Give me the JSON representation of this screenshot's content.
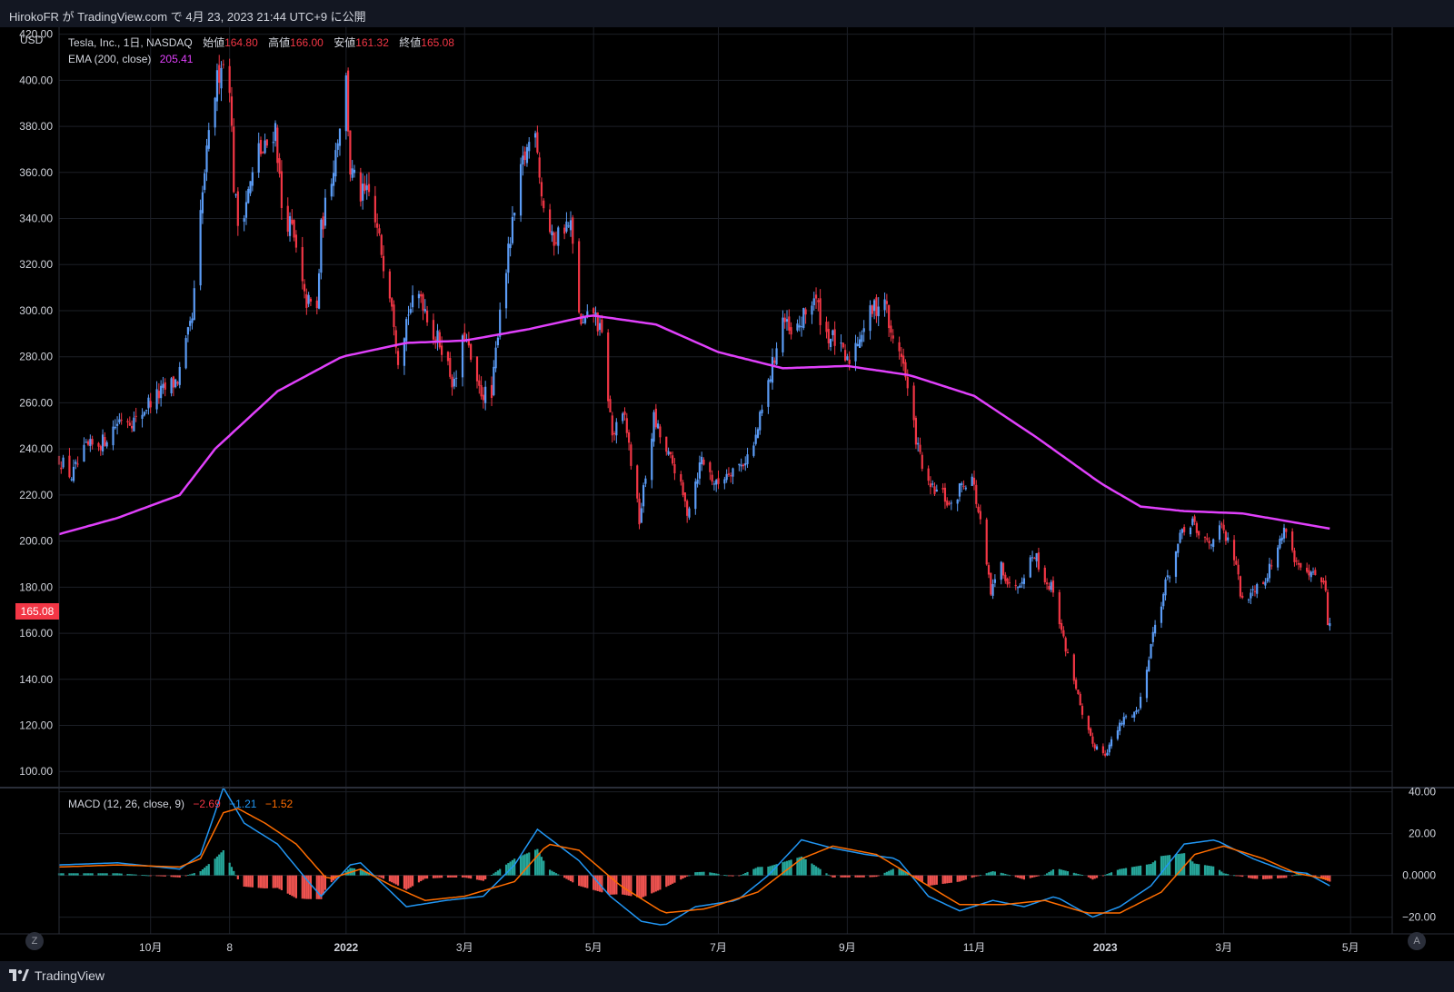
{
  "header": {
    "publish_line": "HirokoFR が TradingView.com で 4月 23, 2023 21:44 UTC+9 に公開"
  },
  "footer": {
    "brand": "TradingView"
  },
  "buttons": {
    "zoom": "Z",
    "auto": "A"
  },
  "chart_data": [
    {
      "type": "candlestick",
      "currency_label": "USD",
      "symbol_line": "Tesla, Inc., 1日, NASDAQ",
      "ohlc_labels": {
        "open": "始値",
        "high": "高値",
        "low": "安値",
        "close": "終値"
      },
      "ohlc_values": {
        "open": "164.80",
        "high": "166.00",
        "low": "161.32",
        "close": "165.08"
      },
      "last_price_tag": "165.08",
      "ema_label": "EMA (200, close)",
      "ema_value": "205.41",
      "ylim": [
        93,
        423
      ],
      "yticks": [
        "100.00",
        "120.00",
        "140.00",
        "160.00",
        "180.00",
        "200.00",
        "220.00",
        "240.00",
        "260.00",
        "280.00",
        "300.00",
        "320.00",
        "340.00",
        "360.00",
        "380.00",
        "400.00",
        "420.00"
      ],
      "x_ticks": [
        "10月",
        "8",
        "2022",
        "3月",
        "5月",
        "7月",
        "9月",
        "11月",
        "2023",
        "3月",
        "5月"
      ],
      "x_tick_dates": [
        "2021-10-01",
        "2021-11-08",
        "2022-01-03",
        "2022-03-01",
        "2022-05-02",
        "2022-07-01",
        "2022-09-01",
        "2022-11-01",
        "2023-01-03",
        "2023-03-01",
        "2023-05-01"
      ],
      "x_range": [
        "2021-08-18",
        "2023-05-21"
      ],
      "price_anchors": [
        [
          "2021-08-18",
          236
        ],
        [
          "2021-08-24",
          228
        ],
        [
          "2021-08-31",
          240
        ],
        [
          "2021-09-08",
          243
        ],
        [
          "2021-09-17",
          254
        ],
        [
          "2021-09-24",
          252
        ],
        [
          "2021-09-30",
          260
        ],
        [
          "2021-10-07",
          265
        ],
        [
          "2021-10-14",
          270
        ],
        [
          "2021-10-21",
          296
        ],
        [
          "2021-10-25",
          340
        ],
        [
          "2021-10-27",
          360
        ],
        [
          "2021-11-01",
          395
        ],
        [
          "2021-11-04",
          409
        ],
        [
          "2021-11-08",
          400
        ],
        [
          "2021-11-10",
          355
        ],
        [
          "2021-11-12",
          338
        ],
        [
          "2021-11-15",
          345
        ],
        [
          "2021-11-19",
          358
        ],
        [
          "2021-11-22",
          370
        ],
        [
          "2021-11-24",
          368
        ],
        [
          "2021-11-30",
          380
        ],
        [
          "2021-12-03",
          345
        ],
        [
          "2021-12-08",
          335
        ],
        [
          "2021-12-14",
          305
        ],
        [
          "2021-12-20",
          300
        ],
        [
          "2021-12-22",
          335
        ],
        [
          "2021-12-28",
          364
        ],
        [
          "2022-01-03",
          400
        ],
        [
          "2022-01-05",
          361
        ],
        [
          "2022-01-10",
          350
        ],
        [
          "2022-01-14",
          350
        ],
        [
          "2022-01-19",
          330
        ],
        [
          "2022-01-25",
          305
        ],
        [
          "2022-01-28",
          280
        ],
        [
          "2022-02-02",
          300
        ],
        [
          "2022-02-08",
          307
        ],
        [
          "2022-02-14",
          290
        ],
        [
          "2022-02-18",
          285
        ],
        [
          "2022-02-24",
          267
        ],
        [
          "2022-03-01",
          290
        ],
        [
          "2022-03-07",
          266
        ],
        [
          "2022-03-14",
          262
        ],
        [
          "2022-03-18",
          302
        ],
        [
          "2022-03-24",
          336
        ],
        [
          "2022-03-29",
          364
        ],
        [
          "2022-04-04",
          382
        ],
        [
          "2022-04-07",
          350
        ],
        [
          "2022-04-12",
          330
        ],
        [
          "2022-04-18",
          337
        ],
        [
          "2022-04-21",
          336
        ],
        [
          "2022-04-26",
          292
        ],
        [
          "2022-05-02",
          300
        ],
        [
          "2022-05-06",
          288
        ],
        [
          "2022-05-11",
          246
        ],
        [
          "2022-05-17",
          254
        ],
        [
          "2022-05-24",
          209
        ],
        [
          "2022-05-31",
          253
        ],
        [
          "2022-06-06",
          238
        ],
        [
          "2022-06-10",
          232
        ],
        [
          "2022-06-16",
          213
        ],
        [
          "2022-06-23",
          236
        ],
        [
          "2022-06-30",
          224
        ],
        [
          "2022-07-06",
          231
        ],
        [
          "2022-07-12",
          233
        ],
        [
          "2022-07-18",
          241
        ],
        [
          "2022-07-25",
          268
        ],
        [
          "2022-08-01",
          297
        ],
        [
          "2022-08-05",
          288
        ],
        [
          "2022-08-10",
          295
        ],
        [
          "2022-08-16",
          306
        ],
        [
          "2022-08-22",
          290
        ],
        [
          "2022-08-26",
          287
        ],
        [
          "2022-09-01",
          277
        ],
        [
          "2022-09-07",
          290
        ],
        [
          "2022-09-13",
          300
        ],
        [
          "2022-09-19",
          306
        ],
        [
          "2022-09-22",
          288
        ],
        [
          "2022-09-27",
          282
        ],
        [
          "2022-09-30",
          265
        ],
        [
          "2022-10-05",
          240
        ],
        [
          "2022-10-10",
          223
        ],
        [
          "2022-10-17",
          220
        ],
        [
          "2022-10-21",
          214
        ],
        [
          "2022-10-26",
          225
        ],
        [
          "2022-10-31",
          228
        ],
        [
          "2022-11-04",
          207
        ],
        [
          "2022-11-09",
          177
        ],
        [
          "2022-11-14",
          190
        ],
        [
          "2022-11-18",
          180
        ],
        [
          "2022-11-23",
          183
        ],
        [
          "2022-11-30",
          195
        ],
        [
          "2022-12-05",
          183
        ],
        [
          "2022-12-09",
          179
        ],
        [
          "2022-12-14",
          157
        ],
        [
          "2022-12-20",
          137
        ],
        [
          "2022-12-23",
          123
        ],
        [
          "2022-12-28",
          112
        ],
        [
          "2023-01-03",
          108
        ],
        [
          "2023-01-06",
          113
        ],
        [
          "2023-01-12",
          123
        ],
        [
          "2023-01-19",
          127
        ],
        [
          "2023-01-26",
          160
        ],
        [
          "2023-02-01",
          181
        ],
        [
          "2023-02-08",
          201
        ],
        [
          "2023-02-14",
          209
        ],
        [
          "2023-02-16",
          202
        ],
        [
          "2023-02-22",
          200
        ],
        [
          "2023-02-28",
          205
        ],
        [
          "2023-03-06",
          193
        ],
        [
          "2023-03-10",
          173
        ],
        [
          "2023-03-15",
          180
        ],
        [
          "2023-03-20",
          183
        ],
        [
          "2023-03-24",
          190
        ],
        [
          "2023-03-31",
          207
        ],
        [
          "2023-04-04",
          192
        ],
        [
          "2023-04-10",
          184
        ],
        [
          "2023-04-14",
          185
        ],
        [
          "2023-04-18",
          180
        ],
        [
          "2023-04-19",
          180
        ],
        [
          "2023-04-20",
          162
        ],
        [
          "2023-04-21",
          165
        ]
      ],
      "ema_anchors": [
        [
          "2021-08-18",
          203
        ],
        [
          "2021-09-15",
          210
        ],
        [
          "2021-10-15",
          220
        ],
        [
          "2021-11-01",
          240
        ],
        [
          "2021-12-01",
          265
        ],
        [
          "2022-01-01",
          280
        ],
        [
          "2022-02-01",
          286
        ],
        [
          "2022-03-01",
          287
        ],
        [
          "2022-04-01",
          292
        ],
        [
          "2022-05-01",
          298
        ],
        [
          "2022-06-01",
          294
        ],
        [
          "2022-07-01",
          282
        ],
        [
          "2022-08-01",
          275
        ],
        [
          "2022-09-01",
          276
        ],
        [
          "2022-10-01",
          272
        ],
        [
          "2022-11-01",
          263
        ],
        [
          "2022-12-01",
          245
        ],
        [
          "2023-01-01",
          225
        ],
        [
          "2023-01-20",
          215
        ],
        [
          "2023-02-10",
          213
        ],
        [
          "2023-03-10",
          212
        ],
        [
          "2023-04-21",
          205.41
        ]
      ]
    },
    {
      "type": "macd",
      "label": "MACD (12, 26, close, 9)",
      "values": [
        "−2.69",
        "−1.21",
        "−1.52"
      ],
      "ylim": [
        -28,
        42
      ],
      "yticks": [
        "40.00",
        "20.00",
        "0.0000",
        "−20.00"
      ],
      "macd_anchors": [
        [
          "2021-08-18",
          5
        ],
        [
          "2021-09-15",
          6
        ],
        [
          "2021-10-15",
          3
        ],
        [
          "2021-10-25",
          10
        ],
        [
          "2021-11-01",
          30
        ],
        [
          "2021-11-05",
          42
        ],
        [
          "2021-11-15",
          25
        ],
        [
          "2021-12-01",
          15
        ],
        [
          "2021-12-15",
          -2
        ],
        [
          "2021-12-22",
          -10
        ],
        [
          "2022-01-05",
          5
        ],
        [
          "2022-01-10",
          6
        ],
        [
          "2022-02-01",
          -15
        ],
        [
          "2022-02-20",
          -12
        ],
        [
          "2022-03-10",
          -10
        ],
        [
          "2022-03-25",
          5
        ],
        [
          "2022-04-05",
          22
        ],
        [
          "2022-04-25",
          7
        ],
        [
          "2022-05-10",
          -10
        ],
        [
          "2022-05-25",
          -22
        ],
        [
          "2022-06-05",
          -24
        ],
        [
          "2022-06-20",
          -15
        ],
        [
          "2022-07-10",
          -12
        ],
        [
          "2022-07-25",
          0
        ],
        [
          "2022-08-10",
          17
        ],
        [
          "2022-08-25",
          13
        ],
        [
          "2022-09-10",
          10
        ],
        [
          "2022-09-25",
          8
        ],
        [
          "2022-10-10",
          -10
        ],
        [
          "2022-10-25",
          -17
        ],
        [
          "2022-11-10",
          -12
        ],
        [
          "2022-11-25",
          -15
        ],
        [
          "2022-12-10",
          -10
        ],
        [
          "2022-12-28",
          -20
        ],
        [
          "2023-01-10",
          -15
        ],
        [
          "2023-01-25",
          -5
        ],
        [
          "2023-02-10",
          15
        ],
        [
          "2023-02-25",
          17
        ],
        [
          "2023-03-15",
          8
        ],
        [
          "2023-03-31",
          2
        ],
        [
          "2023-04-10",
          1
        ],
        [
          "2023-04-21",
          -5
        ]
      ],
      "signal_anchors": [
        [
          "2021-08-18",
          4
        ],
        [
          "2021-09-15",
          5
        ],
        [
          "2021-10-15",
          4
        ],
        [
          "2021-10-25",
          8
        ],
        [
          "2021-11-05",
          30
        ],
        [
          "2021-11-12",
          32
        ],
        [
          "2021-11-25",
          25
        ],
        [
          "2021-12-10",
          15
        ],
        [
          "2021-12-25",
          -2
        ],
        [
          "2022-01-10",
          3
        ],
        [
          "2022-01-25",
          -5
        ],
        [
          "2022-02-10",
          -12
        ],
        [
          "2022-03-01",
          -10
        ],
        [
          "2022-03-25",
          -3
        ],
        [
          "2022-04-10",
          15
        ],
        [
          "2022-04-25",
          12
        ],
        [
          "2022-05-15",
          -5
        ],
        [
          "2022-06-05",
          -18
        ],
        [
          "2022-06-25",
          -16
        ],
        [
          "2022-07-20",
          -8
        ],
        [
          "2022-08-10",
          8
        ],
        [
          "2022-08-25",
          14
        ],
        [
          "2022-09-15",
          10
        ],
        [
          "2022-10-05",
          -2
        ],
        [
          "2022-10-25",
          -14
        ],
        [
          "2022-11-15",
          -14
        ],
        [
          "2022-12-05",
          -12
        ],
        [
          "2022-12-25",
          -18
        ],
        [
          "2023-01-10",
          -18
        ],
        [
          "2023-01-30",
          -8
        ],
        [
          "2023-02-15",
          10
        ],
        [
          "2023-03-01",
          14
        ],
        [
          "2023-03-20",
          8
        ],
        [
          "2023-04-05",
          1
        ],
        [
          "2023-04-21",
          -2
        ]
      ]
    }
  ],
  "colors": {
    "up": "#5b9cf6",
    "down": "#f23645",
    "ema": "#e040fb",
    "macd": "#2196f3",
    "signal": "#ff6d00",
    "hist_pos": "#26a69a",
    "hist_neg": "#ef5350"
  }
}
